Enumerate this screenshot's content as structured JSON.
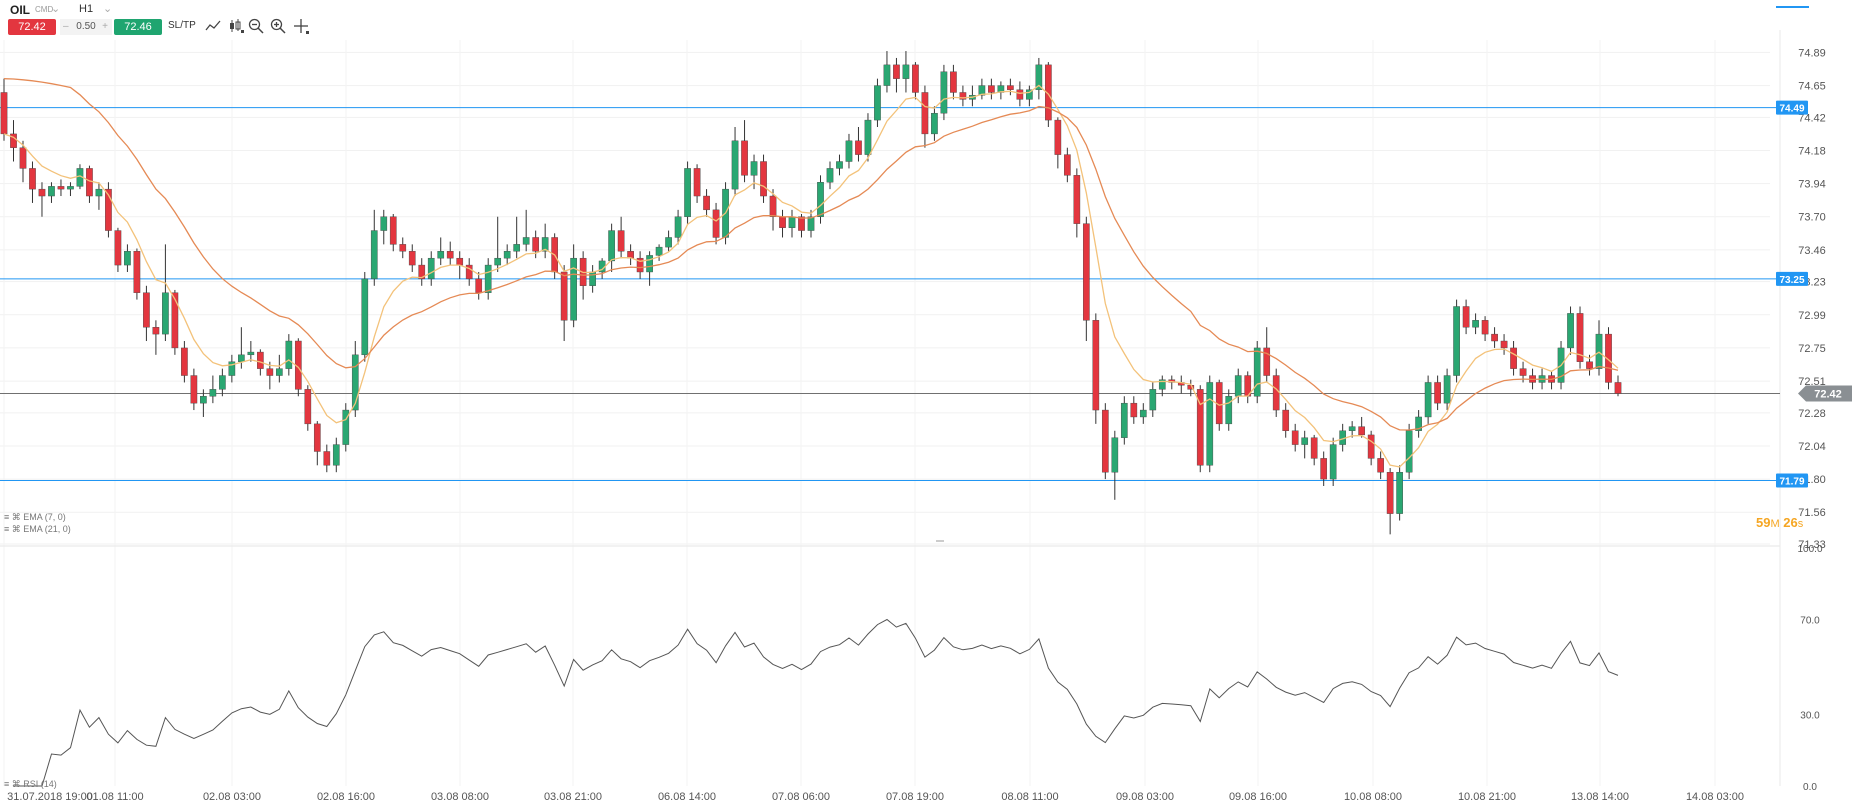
{
  "header": {
    "symbol": "OIL",
    "market": "CMD",
    "timeframe": "H1",
    "sell_price": "72.42",
    "spread": "0.50",
    "spread_minus": "–",
    "spread_plus": "+",
    "buy_price": "72.46",
    "sltp_label": "SL/TP",
    "tools": [
      "trendline-icon",
      "candles-icon",
      "zoom-out-icon",
      "zoom-in-icon",
      "crosshair-icon"
    ],
    "dropdown_glyph": "⌄"
  },
  "legends": {
    "ema7": "EMA (7, 0)",
    "ema21": "EMA (21, 0)",
    "rsi": "RSI (14)"
  },
  "countdown": {
    "minutes": "59",
    "m": "M",
    "seconds": "26",
    "s": "s"
  },
  "colors": {
    "bull": "#2aa772",
    "bear": "#e3363f",
    "ema7": "#f3c27a",
    "ema21": "#e58a55",
    "hline": "#2196f3",
    "price": "#707070",
    "rsi": "#555555"
  },
  "chart_data": [
    {
      "type": "candlestick",
      "title": "OIL H1",
      "ylim": [
        71.33,
        74.98
      ],
      "y_ticks": [
        "74.89",
        "74.65",
        "74.42",
        "74.18",
        "73.94",
        "73.70",
        "73.46",
        "73.23",
        "72.99",
        "72.75",
        "72.51",
        "72.28",
        "72.04",
        "71.80",
        "71.56",
        "71.33"
      ],
      "x_ticks": [
        "31.07.2018 19:00",
        "01.08 11:00",
        "02.08 03:00",
        "02.08 16:00",
        "03.08 08:00",
        "03.08 21:00",
        "06.08 14:00",
        "07.08 06:00",
        "07.08 19:00",
        "08.08 11:00",
        "09.08 03:00",
        "09.08 16:00",
        "10.08 08:00",
        "10.08 21:00",
        "13.08 14:00",
        "14.08 03:00"
      ],
      "horizontal_lines": [
        {
          "value": 74.49,
          "label": "74.49"
        },
        {
          "value": 73.25,
          "label": "73.25"
        },
        {
          "value": 71.79,
          "label": "71.79"
        }
      ],
      "current_price": {
        "value": 72.42,
        "label": "72.42"
      },
      "ohlc": [
        [
          74.6,
          74.7,
          74.25,
          74.3
        ],
        [
          74.3,
          74.4,
          74.1,
          74.2
        ],
        [
          74.2,
          74.25,
          73.95,
          74.05
        ],
        [
          74.05,
          74.1,
          73.8,
          73.9
        ],
        [
          73.9,
          73.95,
          73.7,
          73.85
        ],
        [
          73.85,
          73.95,
          73.8,
          73.92
        ],
        [
          73.92,
          73.97,
          73.85,
          73.9
        ],
        [
          73.9,
          73.95,
          73.85,
          73.92
        ],
        [
          73.92,
          74.08,
          73.9,
          74.05
        ],
        [
          74.05,
          74.07,
          73.8,
          73.85
        ],
        [
          73.85,
          73.95,
          73.75,
          73.9
        ],
        [
          73.9,
          73.95,
          73.55,
          73.6
        ],
        [
          73.6,
          73.62,
          73.3,
          73.35
        ],
        [
          73.35,
          73.5,
          73.3,
          73.45
        ],
        [
          73.45,
          73.47,
          73.1,
          73.15
        ],
        [
          73.15,
          73.2,
          72.8,
          72.9
        ],
        [
          72.9,
          72.95,
          72.7,
          72.85
        ],
        [
          72.85,
          73.5,
          72.8,
          73.15
        ],
        [
          73.15,
          73.17,
          72.7,
          72.75
        ],
        [
          72.75,
          72.8,
          72.5,
          72.55
        ],
        [
          72.55,
          72.6,
          72.3,
          72.35
        ],
        [
          72.35,
          72.45,
          72.25,
          72.4
        ],
        [
          72.4,
          72.55,
          72.35,
          72.45
        ],
        [
          72.45,
          72.6,
          72.4,
          72.55
        ],
        [
          72.55,
          72.7,
          72.5,
          72.65
        ],
        [
          72.65,
          72.9,
          72.6,
          72.7
        ],
        [
          72.7,
          72.8,
          72.65,
          72.72
        ],
        [
          72.72,
          72.74,
          72.55,
          72.6
        ],
        [
          72.6,
          72.65,
          72.45,
          72.55
        ],
        [
          72.55,
          72.7,
          72.5,
          72.6
        ],
        [
          72.6,
          72.85,
          72.55,
          72.8
        ],
        [
          72.8,
          72.82,
          72.4,
          72.45
        ],
        [
          72.45,
          72.48,
          72.15,
          72.2
        ],
        [
          72.2,
          72.22,
          71.9,
          72.0
        ],
        [
          72.0,
          72.05,
          71.85,
          71.9
        ],
        [
          71.9,
          72.1,
          71.85,
          72.05
        ],
        [
          72.05,
          72.35,
          72.0,
          72.3
        ],
        [
          72.3,
          72.8,
          72.25,
          72.7
        ],
        [
          72.7,
          73.3,
          72.65,
          73.25
        ],
        [
          73.25,
          73.75,
          73.2,
          73.6
        ],
        [
          73.6,
          73.75,
          73.5,
          73.7
        ],
        [
          73.7,
          73.72,
          73.45,
          73.5
        ],
        [
          73.5,
          73.55,
          73.4,
          73.45
        ],
        [
          73.45,
          73.5,
          73.3,
          73.35
        ],
        [
          73.35,
          73.4,
          73.2,
          73.25
        ],
        [
          73.25,
          73.45,
          73.2,
          73.4
        ],
        [
          73.4,
          73.55,
          73.35,
          73.45
        ],
        [
          73.45,
          73.52,
          73.35,
          73.4
        ],
        [
          73.4,
          73.45,
          73.25,
          73.35
        ],
        [
          73.35,
          73.4,
          73.2,
          73.25
        ],
        [
          73.25,
          73.3,
          73.1,
          73.15
        ],
        [
          73.15,
          73.4,
          73.1,
          73.35
        ],
        [
          73.35,
          73.7,
          73.3,
          73.4
        ],
        [
          73.4,
          73.5,
          73.35,
          73.45
        ],
        [
          73.45,
          73.7,
          73.4,
          73.5
        ],
        [
          73.5,
          73.75,
          73.45,
          73.55
        ],
        [
          73.55,
          73.6,
          73.4,
          73.45
        ],
        [
          73.45,
          73.65,
          73.4,
          73.55
        ],
        [
          73.55,
          73.58,
          73.25,
          73.3
        ],
        [
          73.3,
          73.35,
          72.8,
          72.95
        ],
        [
          72.95,
          73.5,
          72.9,
          73.4
        ],
        [
          73.4,
          73.45,
          73.1,
          73.2
        ],
        [
          73.2,
          73.35,
          73.15,
          73.3
        ],
        [
          73.3,
          73.4,
          73.25,
          73.38
        ],
        [
          73.38,
          73.65,
          73.3,
          73.6
        ],
        [
          73.6,
          73.7,
          73.4,
          73.45
        ],
        [
          73.45,
          73.5,
          73.35,
          73.4
        ],
        [
          73.4,
          73.45,
          73.25,
          73.3
        ],
        [
          73.3,
          73.45,
          73.2,
          73.42
        ],
        [
          73.42,
          73.5,
          73.38,
          73.48
        ],
        [
          73.48,
          73.6,
          73.45,
          73.55
        ],
        [
          73.55,
          73.75,
          73.5,
          73.7
        ],
        [
          73.7,
          74.1,
          73.65,
          74.05
        ],
        [
          74.05,
          74.08,
          73.8,
          73.85
        ],
        [
          73.85,
          73.9,
          73.7,
          73.75
        ],
        [
          73.75,
          73.8,
          73.5,
          73.55
        ],
        [
          73.55,
          73.95,
          73.5,
          73.9
        ],
        [
          73.9,
          74.35,
          73.85,
          74.25
        ],
        [
          74.25,
          74.4,
          73.95,
          74.0
        ],
        [
          74.0,
          74.15,
          73.9,
          74.1
        ],
        [
          74.1,
          74.15,
          73.8,
          73.85
        ],
        [
          73.85,
          73.9,
          73.6,
          73.7
        ],
        [
          73.7,
          73.75,
          73.55,
          73.62
        ],
        [
          73.62,
          73.75,
          73.55,
          73.7
        ],
        [
          73.7,
          73.72,
          73.55,
          73.6
        ],
        [
          73.6,
          73.75,
          73.55,
          73.7
        ],
        [
          73.7,
          74.0,
          73.65,
          73.95
        ],
        [
          73.95,
          74.1,
          73.9,
          74.05
        ],
        [
          74.05,
          74.15,
          74.0,
          74.1
        ],
        [
          74.1,
          74.3,
          74.05,
          74.25
        ],
        [
          74.25,
          74.35,
          74.1,
          74.15
        ],
        [
          74.15,
          74.45,
          74.1,
          74.4
        ],
        [
          74.4,
          74.7,
          74.35,
          74.65
        ],
        [
          74.65,
          74.9,
          74.6,
          74.8
        ],
        [
          74.8,
          74.85,
          74.6,
          74.7
        ],
        [
          74.7,
          74.9,
          74.6,
          74.8
        ],
        [
          74.8,
          74.82,
          74.55,
          74.6
        ],
        [
          74.6,
          74.65,
          74.2,
          74.3
        ],
        [
          74.3,
          74.5,
          74.25,
          74.45
        ],
        [
          74.45,
          74.8,
          74.4,
          74.75
        ],
        [
          74.75,
          74.8,
          74.55,
          74.6
        ],
        [
          74.6,
          74.65,
          74.5,
          74.55
        ],
        [
          74.55,
          74.65,
          74.5,
          74.58
        ],
        [
          74.58,
          74.7,
          74.55,
          74.65
        ],
        [
          74.65,
          74.7,
          74.55,
          74.6
        ],
        [
          74.6,
          74.68,
          74.55,
          74.65
        ],
        [
          74.65,
          74.7,
          74.58,
          74.62
        ],
        [
          74.62,
          74.68,
          74.5,
          74.55
        ],
        [
          74.55,
          74.65,
          74.5,
          74.62
        ],
        [
          74.62,
          74.85,
          74.55,
          74.8
        ],
        [
          74.8,
          74.82,
          74.35,
          74.4
        ],
        [
          74.4,
          74.42,
          74.05,
          74.15
        ],
        [
          74.15,
          74.2,
          73.95,
          74.0
        ],
        [
          74.0,
          74.05,
          73.55,
          73.65
        ],
        [
          73.65,
          73.7,
          72.8,
          72.95
        ],
        [
          72.95,
          73.0,
          72.2,
          72.3
        ],
        [
          72.3,
          72.35,
          71.8,
          71.85
        ],
        [
          71.85,
          72.15,
          71.65,
          72.1
        ],
        [
          72.1,
          72.4,
          72.05,
          72.35
        ],
        [
          72.35,
          72.4,
          72.2,
          72.25
        ],
        [
          72.25,
          72.35,
          72.2,
          72.3
        ],
        [
          72.3,
          72.5,
          72.25,
          72.45
        ],
        [
          72.45,
          72.55,
          72.4,
          72.52
        ],
        [
          72.52,
          72.55,
          72.45,
          72.5
        ],
        [
          72.5,
          72.55,
          72.42,
          72.48
        ],
        [
          72.48,
          72.52,
          72.4,
          72.45
        ],
        [
          72.45,
          72.48,
          71.85,
          71.9
        ],
        [
          71.9,
          72.55,
          71.85,
          72.5
        ],
        [
          72.5,
          72.52,
          72.15,
          72.2
        ],
        [
          72.2,
          72.45,
          72.15,
          72.4
        ],
        [
          72.4,
          72.6,
          72.35,
          72.55
        ],
        [
          72.55,
          72.58,
          72.35,
          72.4
        ],
        [
          72.4,
          72.8,
          72.35,
          72.75
        ],
        [
          72.75,
          72.9,
          72.5,
          72.55
        ],
        [
          72.55,
          72.6,
          72.25,
          72.3
        ],
        [
          72.3,
          72.35,
          72.1,
          72.15
        ],
        [
          72.15,
          72.2,
          72.0,
          72.05
        ],
        [
          72.05,
          72.15,
          71.95,
          72.1
        ],
        [
          72.1,
          72.12,
          71.9,
          71.95
        ],
        [
          71.95,
          72.0,
          71.75,
          71.8
        ],
        [
          71.8,
          72.1,
          71.75,
          72.05
        ],
        [
          72.05,
          72.2,
          72.0,
          72.15
        ],
        [
          72.15,
          72.22,
          72.1,
          72.18
        ],
        [
          72.18,
          72.25,
          72.1,
          72.12
        ],
        [
          72.12,
          72.15,
          71.9,
          71.95
        ],
        [
          71.95,
          72.0,
          71.8,
          71.85
        ],
        [
          71.85,
          71.88,
          71.4,
          71.55
        ],
        [
          71.55,
          71.9,
          71.5,
          71.85
        ],
        [
          71.85,
          72.2,
          71.8,
          72.15
        ],
        [
          72.15,
          72.3,
          72.1,
          72.25
        ],
        [
          72.25,
          72.55,
          72.2,
          72.5
        ],
        [
          72.5,
          72.55,
          72.3,
          72.35
        ],
        [
          72.35,
          72.6,
          72.3,
          72.55
        ],
        [
          72.55,
          73.1,
          72.5,
          73.05
        ],
        [
          73.05,
          73.1,
          72.85,
          72.9
        ],
        [
          72.9,
          73.0,
          72.85,
          72.95
        ],
        [
          72.95,
          72.98,
          72.8,
          72.85
        ],
        [
          72.85,
          72.9,
          72.75,
          72.8
        ],
        [
          72.8,
          72.85,
          72.7,
          72.75
        ],
        [
          72.75,
          72.8,
          72.55,
          72.6
        ],
        [
          72.6,
          72.65,
          72.5,
          72.55
        ],
        [
          72.55,
          72.6,
          72.45,
          72.5
        ],
        [
          72.5,
          72.6,
          72.45,
          72.55
        ],
        [
          72.55,
          72.58,
          72.45,
          72.5
        ],
        [
          72.5,
          72.8,
          72.45,
          72.75
        ],
        [
          72.75,
          73.05,
          72.7,
          73.0
        ],
        [
          73.0,
          73.05,
          72.6,
          72.65
        ],
        [
          72.65,
          72.7,
          72.55,
          72.6
        ],
        [
          72.6,
          72.95,
          72.55,
          72.85
        ],
        [
          72.85,
          72.9,
          72.45,
          72.5
        ],
        [
          72.5,
          72.55,
          72.4,
          72.42
        ]
      ],
      "series": [
        {
          "name": "EMA (7, 0)"
        },
        {
          "name": "EMA (21, 0)"
        }
      ]
    },
    {
      "type": "line",
      "title": "RSI (14)",
      "ylim": [
        0,
        100
      ],
      "y_ticks": [
        "100.0",
        "70.0",
        "30.0",
        "0.0"
      ]
    }
  ]
}
